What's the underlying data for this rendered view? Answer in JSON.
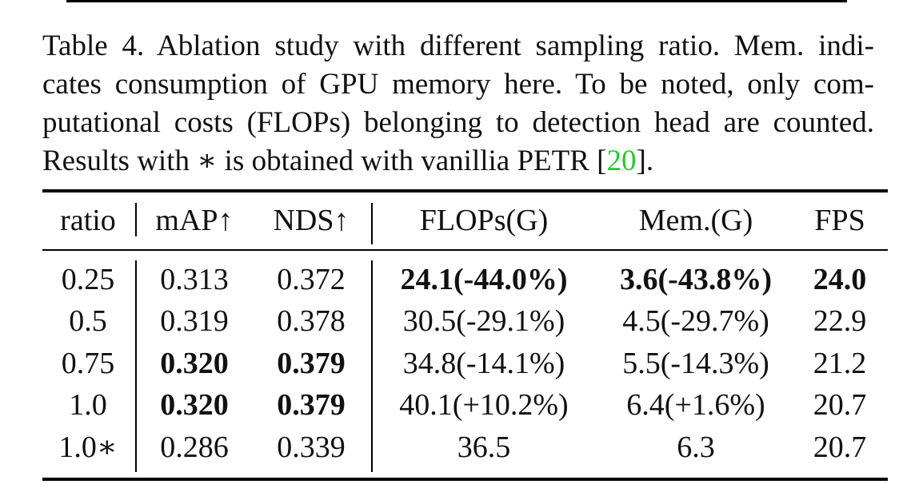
{
  "caption": {
    "lines": [
      "Table 4. Ablation study with different sampling ratio. Mem. indi-",
      "cates consumption of GPU memory here. To be noted, only com-",
      "putational costs (FLOPs) belonging to detection head are counted.",
      "Results with ∗ is obtained with vanillia PETR ["
    ],
    "citation": "20",
    "tail": "]."
  },
  "table": {
    "headers": [
      "ratio",
      "mAP↑",
      "NDS↑",
      "FLOPs(G)",
      "Mem.(G)",
      "FPS"
    ],
    "rows": [
      [
        "0.25",
        "0.313",
        "0.372",
        "24.1(-44.0%)",
        "3.6(-43.8%)",
        "24.0"
      ],
      [
        "0.5",
        "0.319",
        "0.378",
        "30.5(-29.1%)",
        "4.5(-29.7%)",
        "22.9"
      ],
      [
        "0.75",
        "0.320",
        "0.379",
        "34.8(-14.1%)",
        "5.5(-14.3%)",
        "21.2"
      ],
      [
        "1.0",
        "0.320",
        "0.379",
        "40.1(+10.2%)",
        "6.4(+1.6%)",
        "20.7"
      ],
      [
        "1.0∗",
        "0.286",
        "0.339",
        "36.5",
        "6.3",
        "20.7"
      ]
    ],
    "bold_cells": [
      [
        0,
        3
      ],
      [
        0,
        4
      ],
      [
        0,
        5
      ],
      [
        2,
        1
      ],
      [
        2,
        2
      ],
      [
        3,
        1
      ],
      [
        3,
        2
      ]
    ]
  },
  "colors": {
    "citation": "#22cc22",
    "text": "#111111"
  }
}
